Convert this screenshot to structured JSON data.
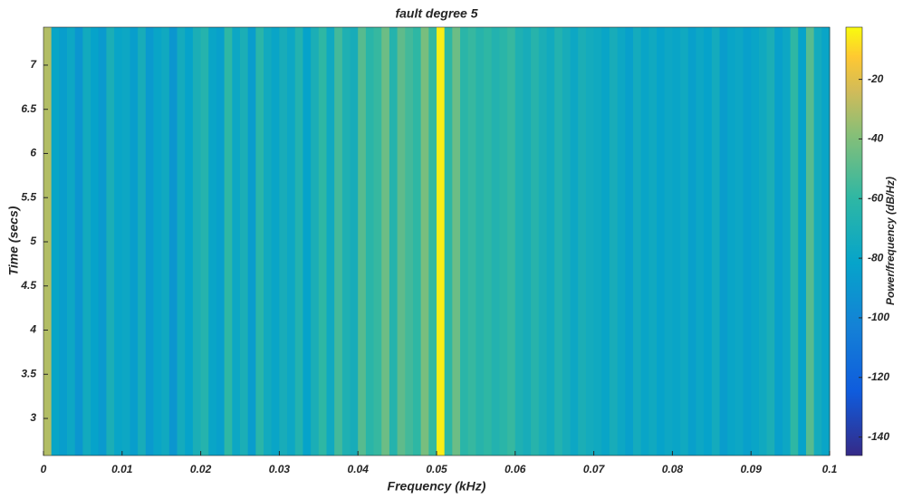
{
  "chart_data": {
    "type": "spectrogram",
    "title": "fault degree 5",
    "x_label": "Frequency (kHz)",
    "y_label": "Time (secs)",
    "colorbar_label": "Power/frequency (dB/Hz)",
    "colormap": "parula",
    "x": [
      0,
      0.001,
      0.002,
      0.003,
      0.004,
      0.005,
      0.006,
      0.007,
      0.008,
      0.009,
      0.01,
      0.011,
      0.012,
      0.013,
      0.014,
      0.015,
      0.016,
      0.017,
      0.018,
      0.019,
      0.02,
      0.021,
      0.022,
      0.023,
      0.024,
      0.025,
      0.026,
      0.027,
      0.028,
      0.029,
      0.03,
      0.031,
      0.032,
      0.033,
      0.034,
      0.035,
      0.036,
      0.037,
      0.038,
      0.039,
      0.04,
      0.041,
      0.042,
      0.043,
      0.044,
      0.045,
      0.046,
      0.047,
      0.048,
      0.049,
      0.05,
      0.051,
      0.052,
      0.053,
      0.054,
      0.055,
      0.056,
      0.057,
      0.058,
      0.059,
      0.06,
      0.061,
      0.062,
      0.063,
      0.064,
      0.065,
      0.066,
      0.067,
      0.068,
      0.069,
      0.07,
      0.071,
      0.072,
      0.073,
      0.074,
      0.075,
      0.076,
      0.077,
      0.078,
      0.079,
      0.08,
      0.081,
      0.082,
      0.083,
      0.084,
      0.085,
      0.086,
      0.087,
      0.088,
      0.089,
      0.09,
      0.091,
      0.092,
      0.093,
      0.094,
      0.095,
      0.096,
      0.097,
      0.098,
      0.099
    ],
    "values": [
      -30,
      -80,
      -85,
      -78,
      -90,
      -75,
      -82,
      -88,
      -70,
      -80,
      -78,
      -85,
      -72,
      -88,
      -80,
      -76,
      -90,
      -74,
      -82,
      -70,
      -65,
      -80,
      -84,
      -60,
      -78,
      -70,
      -86,
      -62,
      -75,
      -80,
      -72,
      -78,
      -66,
      -82,
      -70,
      -60,
      -76,
      -55,
      -68,
      -72,
      -50,
      -62,
      -58,
      -45,
      -65,
      -48,
      -55,
      -60,
      -42,
      -58,
      -5,
      -60,
      -45,
      -62,
      -58,
      -64,
      -60,
      -66,
      -62,
      -58,
      -68,
      -72,
      -64,
      -70,
      -75,
      -66,
      -72,
      -78,
      -70,
      -74,
      -76,
      -80,
      -72,
      -78,
      -84,
      -74,
      -80,
      -76,
      -82,
      -78,
      -80,
      -76,
      -84,
      -78,
      -82,
      -74,
      -86,
      -80,
      -78,
      -84,
      -80,
      -76,
      -70,
      -84,
      -78,
      -60,
      -82,
      -50,
      -74,
      -80
    ],
    "xlim": [
      0,
      0.1
    ],
    "xticks": [
      0,
      0.01,
      0.02,
      0.03,
      0.04,
      0.05,
      0.06,
      0.07,
      0.08,
      0.09,
      0.1
    ],
    "ylim": [
      2.58,
      7.43
    ],
    "yticks": [
      3,
      3.5,
      4,
      4.5,
      5,
      5.5,
      6,
      6.5,
      7
    ],
    "clim": [
      -146.2,
      -2.5
    ],
    "cticks": [
      -20,
      -40,
      -60,
      -80,
      -100,
      -120,
      -140
    ]
  }
}
